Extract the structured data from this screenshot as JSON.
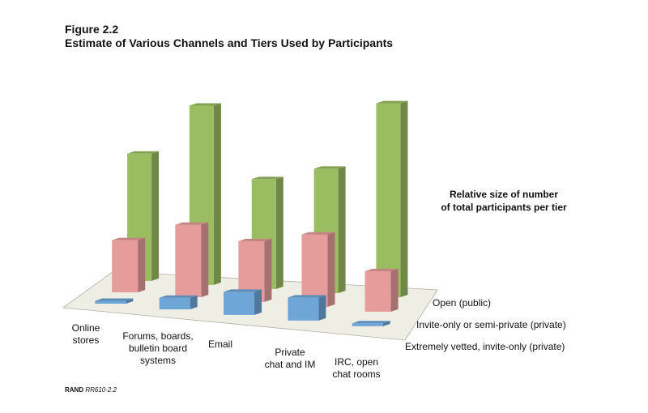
{
  "figure_number": "Figure 2.2",
  "title": "Estimate of Various Channels and Tiers Used by Participants",
  "annotation_lines": [
    "Relative size of number",
    "of total participants per tier"
  ],
  "source_label": "RAND",
  "source_id": "RR610-2.2",
  "chart_data": {
    "type": "bar",
    "chart_style": "3d-grouped",
    "categories": [
      [
        "Online",
        "stores"
      ],
      [
        "Forums, boards,",
        "bulletin board",
        "systems"
      ],
      [
        "Email"
      ],
      [
        "Private",
        "chat and IM"
      ],
      [
        "IRC, open",
        "chat rooms"
      ]
    ],
    "series": [
      {
        "name": "Extremely vetted, invite-only (private)",
        "color": "#6fa6d8",
        "values": [
          1,
          4,
          8,
          8,
          1
        ]
      },
      {
        "name": "Invite-only or semi-private (private)",
        "color": "#e59c9a",
        "values": [
          18,
          25,
          21,
          25,
          14
        ]
      },
      {
        "name": "Open (public)",
        "color": "#9bbd62",
        "values": [
          44,
          62,
          38,
          43,
          67
        ]
      }
    ],
    "value_units": "relative",
    "ylim": [
      0,
      70
    ],
    "grid": false,
    "legend_position": "right"
  }
}
